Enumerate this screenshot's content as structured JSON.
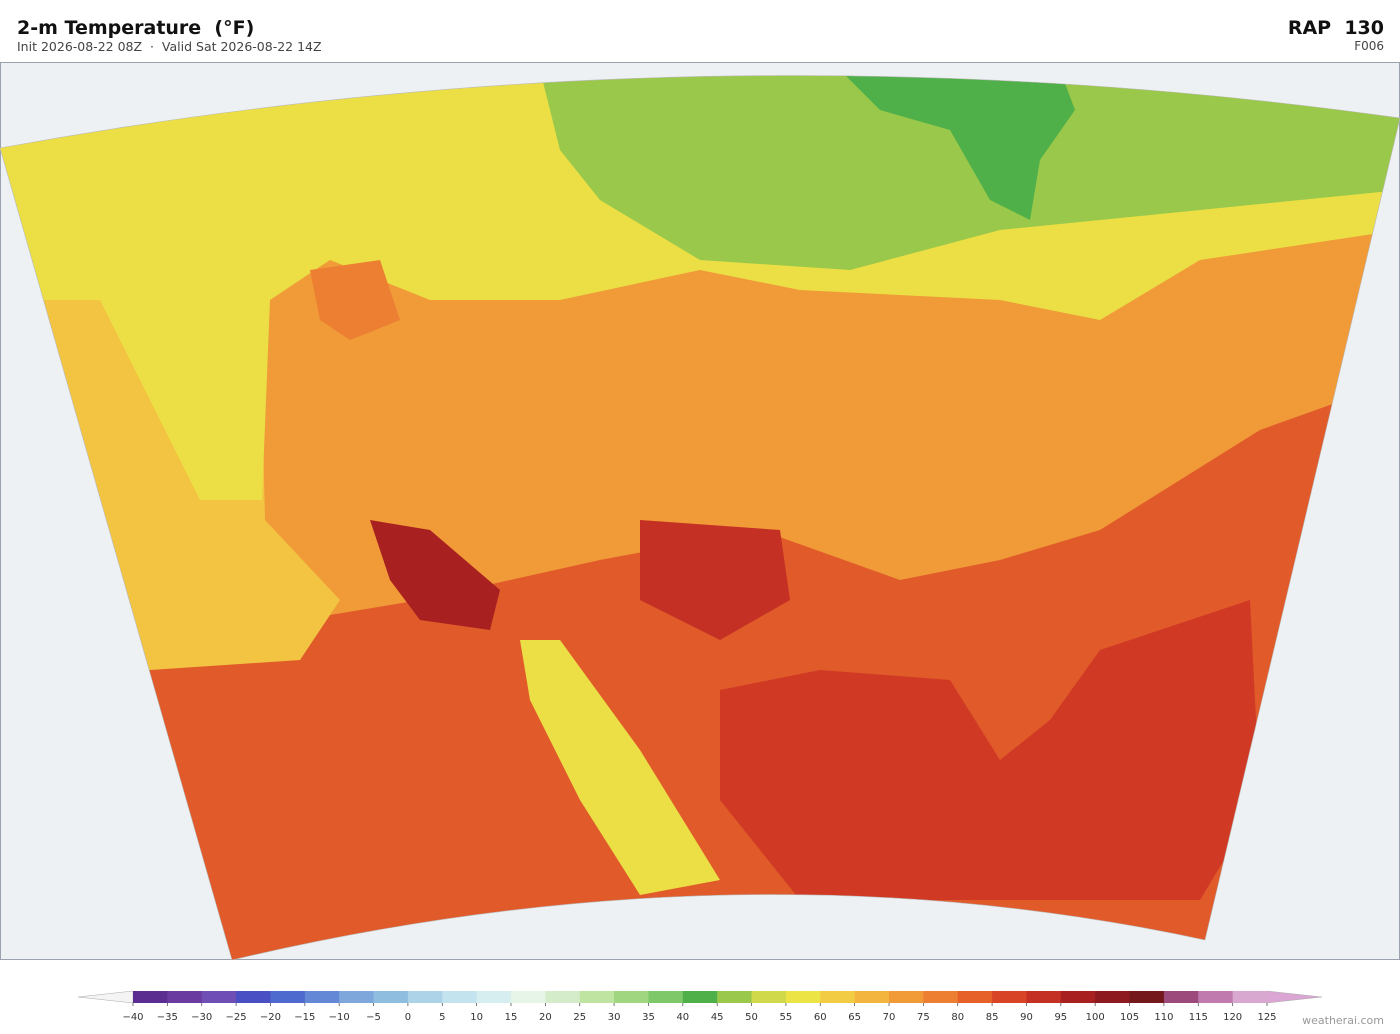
{
  "header": {
    "title": "2-m Temperature  (°F)",
    "subtitle": "Init 2026-08-22 08Z  ·  Valid Sat 2026-08-22 14Z",
    "model": "RAP  130",
    "forecast_hour": "F006"
  },
  "colorbar": {
    "ticks": [
      {
        "value": -40,
        "label": "−40"
      },
      {
        "value": -35,
        "label": "−35"
      },
      {
        "value": -30,
        "label": "−30"
      },
      {
        "value": -25,
        "label": "−25"
      },
      {
        "value": -20,
        "label": "−20"
      },
      {
        "value": -15,
        "label": "−15"
      },
      {
        "value": -10,
        "label": "−10"
      },
      {
        "value": -5,
        "label": "−5"
      },
      0,
      5,
      10,
      15,
      20,
      25,
      30,
      35,
      40,
      45,
      50,
      55,
      60,
      65,
      70,
      75,
      80,
      85,
      90,
      95,
      100,
      105,
      110,
      115,
      120,
      125
    ],
    "colors": [
      "#5b2d91",
      "#6a3aa0",
      "#6f4fb5",
      "#4a4fc4",
      "#4f6acf",
      "#6488d6",
      "#7ea8dc",
      "#8fbde0",
      "#acd3e8",
      "#c3e3ef",
      "#d6eef0",
      "#e6f5e8",
      "#d5eccb",
      "#bfe3a0",
      "#9fd67f",
      "#7fc86a",
      "#4fb04a",
      "#9ac84a",
      "#cfd94a",
      "#ece444",
      "#f2cc42",
      "#f3b53e",
      "#f09a38",
      "#ec7f32",
      "#e6602a",
      "#d84426",
      "#c53024",
      "#a82020",
      "#8c1a1e",
      "#74181c",
      "#9c4a7c",
      "#c07aae",
      "#d8a8d0"
    ],
    "under_color": "#f4f4f4",
    "over_color": "#dca6d4"
  },
  "watermark": "weatherai.com"
}
